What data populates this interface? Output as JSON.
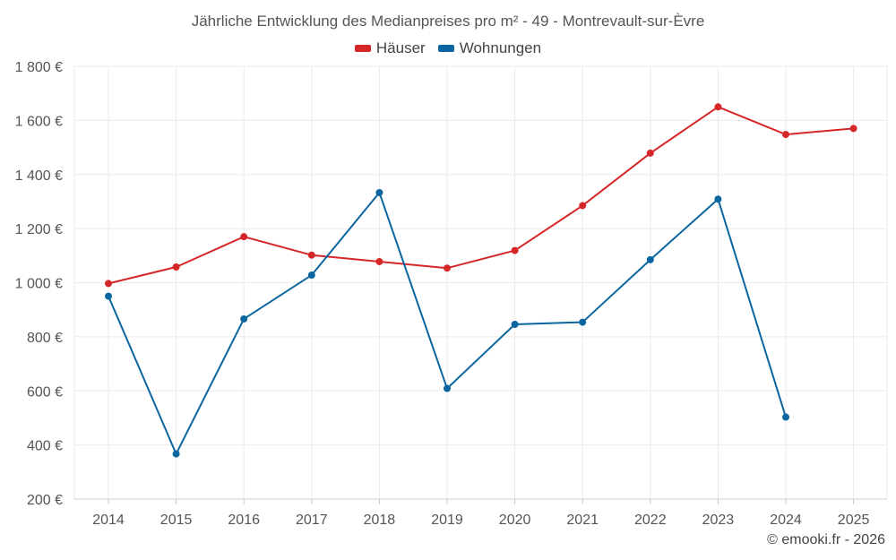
{
  "chart_data": {
    "type": "line",
    "title": "Jährliche Entwicklung des Medianpreises pro m² - 49 - Montrevault-sur-Èvre",
    "x": [
      "2014",
      "2015",
      "2016",
      "2017",
      "2018",
      "2019",
      "2020",
      "2021",
      "2022",
      "2023",
      "2024",
      "2025"
    ],
    "ylim": [
      200,
      1800
    ],
    "yticks": [
      200,
      400,
      600,
      800,
      1000,
      1200,
      1400,
      1600,
      1800
    ],
    "ytick_labels": [
      "200 €",
      "400 €",
      "600 €",
      "800 €",
      "1 000 €",
      "1 200 €",
      "1 400 €",
      "1 600 €",
      "1 800 €"
    ],
    "grid": true,
    "legend_position": "top-center",
    "series": [
      {
        "name": "Häuser",
        "color": "#d62728",
        "values": [
          997,
          1058,
          1170,
          1102,
          1078,
          1054,
          1119,
          1285,
          1479,
          1650,
          1548,
          1570
        ]
      },
      {
        "name": "Wohnungen",
        "color": "#0b66a0",
        "values": [
          950,
          367,
          866,
          1028,
          1333,
          609,
          846,
          854,
          1085,
          1309,
          503,
          null
        ]
      }
    ]
  },
  "credit": "© emooki.fr - 2026"
}
